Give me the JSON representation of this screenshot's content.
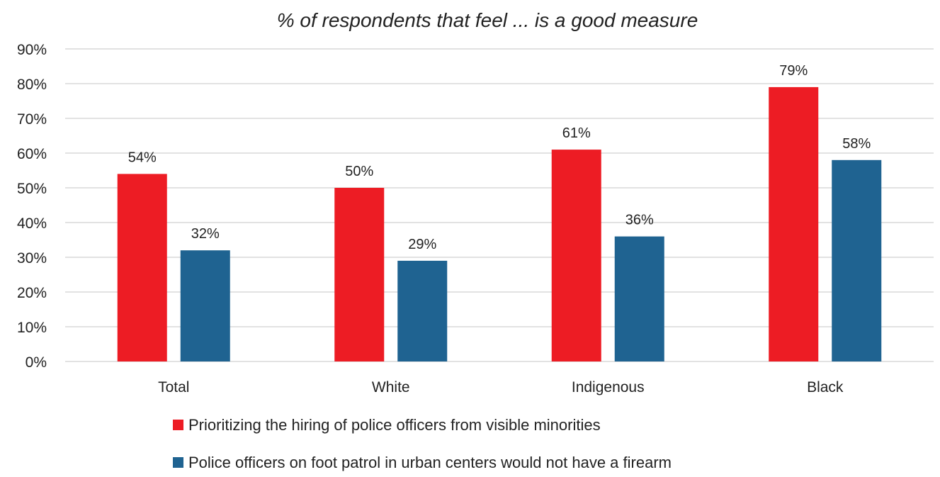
{
  "chart_data": {
    "type": "bar",
    "title": "% of respondents that feel ... is a good measure",
    "categories": [
      "Total",
      "White",
      "Indigenous",
      "Black"
    ],
    "series": [
      {
        "name": "Prioritizing the hiring of police officers from visible minorities",
        "values": [
          54,
          50,
          61,
          79
        ],
        "labels": [
          "54%",
          "50%",
          "61%",
          "79%"
        ],
        "color": "#ED1C24"
      },
      {
        "name": "Police officers on foot patrol in urban centers would not have a firearm",
        "values": [
          32,
          29,
          36,
          58
        ],
        "labels": [
          "32%",
          "29%",
          "36%",
          "58%"
        ],
        "color": "#1F6391"
      }
    ],
    "ylim": [
      0,
      90
    ],
    "yticks": [
      "0%",
      "10%",
      "20%",
      "30%",
      "40%",
      "50%",
      "60%",
      "70%",
      "80%",
      "90%"
    ],
    "grid": true,
    "legend_position": "bottom"
  }
}
